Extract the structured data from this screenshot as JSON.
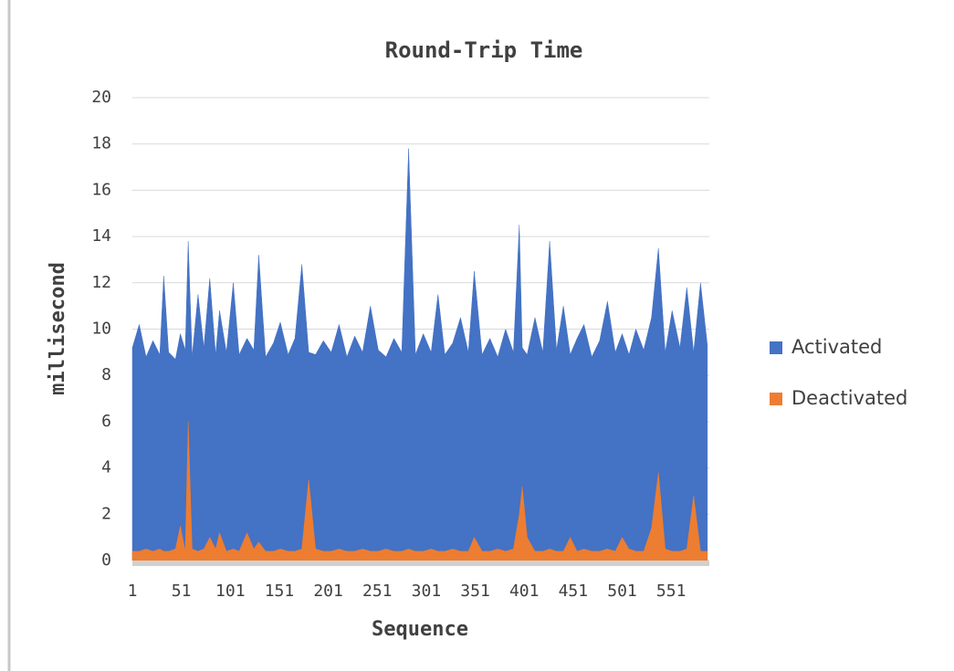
{
  "chart_data": {
    "type": "area",
    "title": "Round-Trip Time",
    "x_label": "Sequence",
    "y_label": "millisecond",
    "x": [
      1,
      8,
      15,
      22,
      29,
      33,
      38,
      45,
      50,
      55,
      58,
      62,
      68,
      74,
      80,
      86,
      90,
      97,
      104,
      110,
      118,
      125,
      130,
      137,
      145,
      152,
      160,
      167,
      174,
      181,
      188,
      196,
      204,
      212,
      220,
      228,
      236,
      244,
      252,
      260,
      268,
      276,
      283,
      290,
      298,
      306,
      313,
      320,
      328,
      336,
      344,
      350,
      358,
      366,
      374,
      382,
      390,
      396,
      399,
      404,
      412,
      420,
      427,
      434,
      441,
      448,
      455,
      462,
      470,
      478,
      486,
      494,
      501,
      508,
      515,
      523,
      531,
      538,
      545,
      552,
      560,
      567,
      574,
      581,
      588
    ],
    "series": [
      {
        "name": "Activated",
        "color": "#4472c4",
        "values": [
          9.2,
          10.2,
          8.8,
          9.5,
          8.9,
          12.3,
          9.0,
          8.7,
          9.8,
          9.1,
          13.8,
          8.8,
          11.5,
          9.2,
          12.2,
          8.9,
          10.8,
          9.0,
          12.0,
          8.9,
          9.6,
          9.1,
          13.2,
          8.8,
          9.4,
          10.3,
          8.9,
          9.6,
          12.8,
          9.0,
          8.9,
          9.5,
          9.0,
          10.2,
          8.8,
          9.7,
          9.0,
          11.0,
          9.1,
          8.8,
          9.6,
          9.0,
          17.8,
          8.9,
          9.8,
          9.0,
          11.5,
          8.9,
          9.4,
          10.5,
          9.0,
          12.5,
          8.9,
          9.6,
          8.8,
          10.0,
          9.0,
          14.5,
          9.2,
          8.9,
          10.5,
          9.0,
          13.8,
          9.1,
          11.0,
          8.9,
          9.6,
          10.2,
          8.8,
          9.5,
          11.2,
          9.0,
          9.8,
          8.9,
          10.0,
          9.1,
          10.5,
          13.5,
          9.0,
          10.8,
          9.2,
          11.8,
          9.0,
          12.0,
          9.3
        ]
      },
      {
        "name": "Deactivated",
        "color": "#ed7d31",
        "values": [
          0.4,
          0.4,
          0.5,
          0.4,
          0.5,
          0.4,
          0.4,
          0.5,
          1.5,
          0.4,
          6.0,
          0.5,
          0.4,
          0.5,
          1.0,
          0.5,
          1.2,
          0.4,
          0.5,
          0.4,
          1.2,
          0.5,
          0.8,
          0.4,
          0.4,
          0.5,
          0.4,
          0.4,
          0.5,
          3.5,
          0.5,
          0.4,
          0.4,
          0.5,
          0.4,
          0.4,
          0.5,
          0.4,
          0.4,
          0.5,
          0.4,
          0.4,
          0.5,
          0.4,
          0.4,
          0.5,
          0.4,
          0.4,
          0.5,
          0.4,
          0.4,
          1.0,
          0.4,
          0.4,
          0.5,
          0.4,
          0.5,
          2.0,
          3.2,
          1.0,
          0.4,
          0.4,
          0.5,
          0.4,
          0.4,
          1.0,
          0.4,
          0.5,
          0.4,
          0.4,
          0.5,
          0.4,
          1.0,
          0.5,
          0.4,
          0.4,
          1.4,
          3.8,
          0.5,
          0.4,
          0.4,
          0.5,
          2.8,
          0.4,
          0.4
        ]
      }
    ],
    "xlim": [
      1,
      590
    ],
    "xticks": [
      1,
      51,
      101,
      151,
      201,
      251,
      301,
      351,
      401,
      451,
      501,
      551
    ],
    "ylim": [
      0,
      20
    ],
    "yticks": [
      0,
      2,
      4,
      6,
      8,
      10,
      12,
      14,
      16,
      18,
      20
    ],
    "grid": true,
    "legend": "right"
  }
}
